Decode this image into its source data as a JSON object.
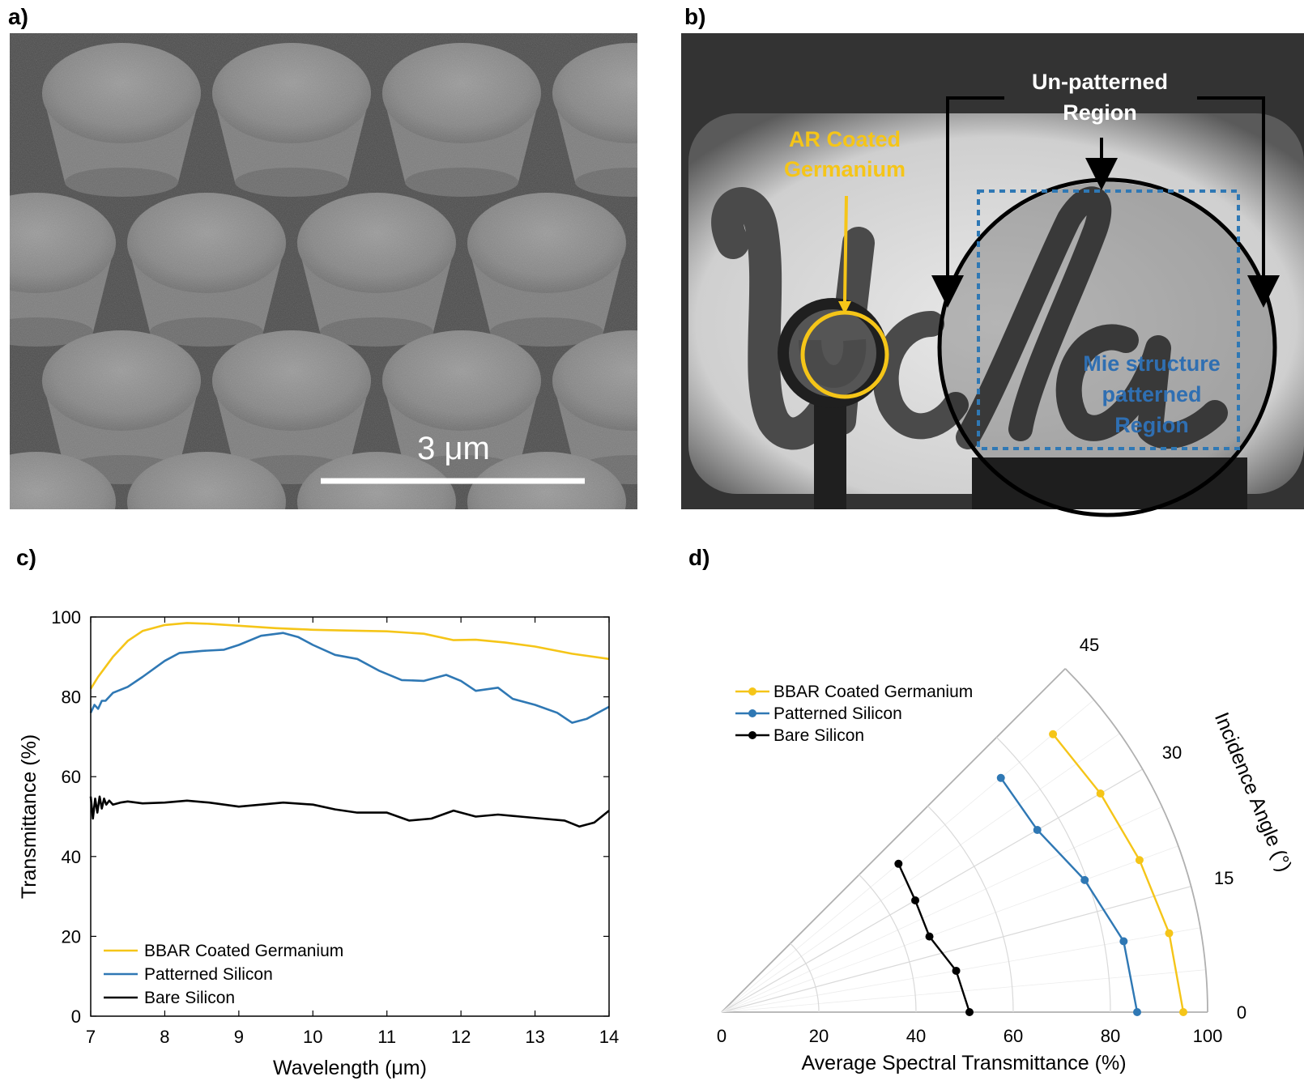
{
  "panels": {
    "a": {
      "label": "a)",
      "scale_bar_label": "3 μm"
    },
    "b": {
      "label": "b)",
      "ann_unpatterned_1": "Un-patterned",
      "ann_unpatterned_2": "Region",
      "ann_ar_1": "AR Coated",
      "ann_ar_2": "Germanium",
      "ann_mie_1": "Mie structure",
      "ann_mie_2": "patterned",
      "ann_mie_3": "Region"
    },
    "c": {
      "label": "c)"
    },
    "d": {
      "label": "d)"
    }
  },
  "colors": {
    "yellow": "#f5c518",
    "blue": "#2f78b4",
    "black": "#000000",
    "grid": "#d9d9d9"
  },
  "chart_data": [
    {
      "type": "line",
      "panel": "c",
      "xlabel": "Wavelength (μm)",
      "ylabel": "Transmittance (%)",
      "xlim": [
        7,
        14
      ],
      "ylim": [
        0,
        100
      ],
      "xticks": [
        7,
        8,
        9,
        10,
        11,
        12,
        13,
        14
      ],
      "yticks": [
        0,
        20,
        40,
        60,
        80,
        100
      ],
      "legend": "bottom-left",
      "series": [
        {
          "name": "BBAR Coated Germanium",
          "color": "#f5c518",
          "x": [
            7.0,
            7.1,
            7.3,
            7.5,
            7.7,
            8.0,
            8.3,
            8.6,
            9.0,
            9.5,
            10.0,
            10.5,
            11.0,
            11.5,
            11.9,
            12.2,
            12.6,
            13.0,
            13.5,
            14.0
          ],
          "y": [
            82,
            85,
            90,
            94,
            96.5,
            98,
            98.5,
            98.3,
            97.8,
            97.2,
            96.8,
            96.6,
            96.4,
            95.8,
            94.2,
            94.3,
            93.6,
            92.6,
            90.8,
            89.5
          ]
        },
        {
          "name": "Patterned Silicon",
          "color": "#2f78b4",
          "x": [
            7.0,
            7.05,
            7.1,
            7.15,
            7.2,
            7.3,
            7.5,
            7.7,
            8.0,
            8.2,
            8.5,
            8.8,
            9.0,
            9.3,
            9.6,
            9.8,
            10.0,
            10.3,
            10.6,
            10.9,
            11.2,
            11.5,
            11.8,
            12.0,
            12.2,
            12.5,
            12.7,
            13.0,
            13.3,
            13.5,
            13.7,
            14.0
          ],
          "y": [
            76,
            78,
            77,
            79,
            79,
            81,
            82.5,
            85,
            89,
            91,
            91.5,
            91.8,
            93,
            95.3,
            96,
            95,
            93,
            90.5,
            89.5,
            86.5,
            84.2,
            84,
            85.5,
            84,
            81.5,
            82.3,
            79.5,
            78,
            76,
            73.5,
            74.5,
            77.5
          ]
        },
        {
          "name": "Bare Silicon",
          "color": "#000000",
          "x": [
            7.0,
            7.03,
            7.06,
            7.09,
            7.12,
            7.15,
            7.18,
            7.21,
            7.25,
            7.3,
            7.4,
            7.5,
            7.7,
            8.0,
            8.3,
            8.6,
            9.0,
            9.3,
            9.6,
            10.0,
            10.3,
            10.6,
            11.0,
            11.3,
            11.6,
            11.9,
            12.2,
            12.5,
            12.8,
            13.1,
            13.4,
            13.6,
            13.8,
            14.0
          ],
          "y": [
            55,
            49.5,
            54.5,
            51,
            55,
            52,
            54.5,
            53,
            54,
            53,
            53.5,
            53.8,
            53.3,
            53.5,
            54,
            53.5,
            52.5,
            53,
            53.5,
            53,
            51.8,
            51,
            51,
            49,
            49.5,
            51.5,
            50,
            50.5,
            50,
            49.5,
            49,
            47.5,
            48.5,
            51.5
          ]
        }
      ]
    },
    {
      "type": "polar-sector",
      "panel": "d",
      "xlabel": "Average Spectral Transmittance (%)",
      "ylabel": "Incidence Angle (°)",
      "rlim": [
        0,
        100
      ],
      "rticks": [
        0,
        20,
        40,
        60,
        80,
        100
      ],
      "theta_ticks": [
        0,
        15,
        30,
        45
      ],
      "legend": "top-left",
      "series": [
        {
          "name": "BBAR Coated Germanium",
          "color": "#f5c518",
          "theta": [
            0,
            10,
            20,
            30,
            40
          ],
          "r": [
            95,
            93.5,
            91.5,
            90,
            89
          ]
        },
        {
          "name": "Patterned Silicon",
          "color": "#2f78b4",
          "theta": [
            0,
            10,
            20,
            30,
            40
          ],
          "r": [
            85.5,
            84,
            79.5,
            75,
            75
          ]
        },
        {
          "name": "Bare Silicon",
          "color": "#000000",
          "theta": [
            0,
            10,
            20,
            30,
            40
          ],
          "r": [
            51,
            49,
            45.5,
            46,
            47.5
          ]
        }
      ]
    }
  ]
}
